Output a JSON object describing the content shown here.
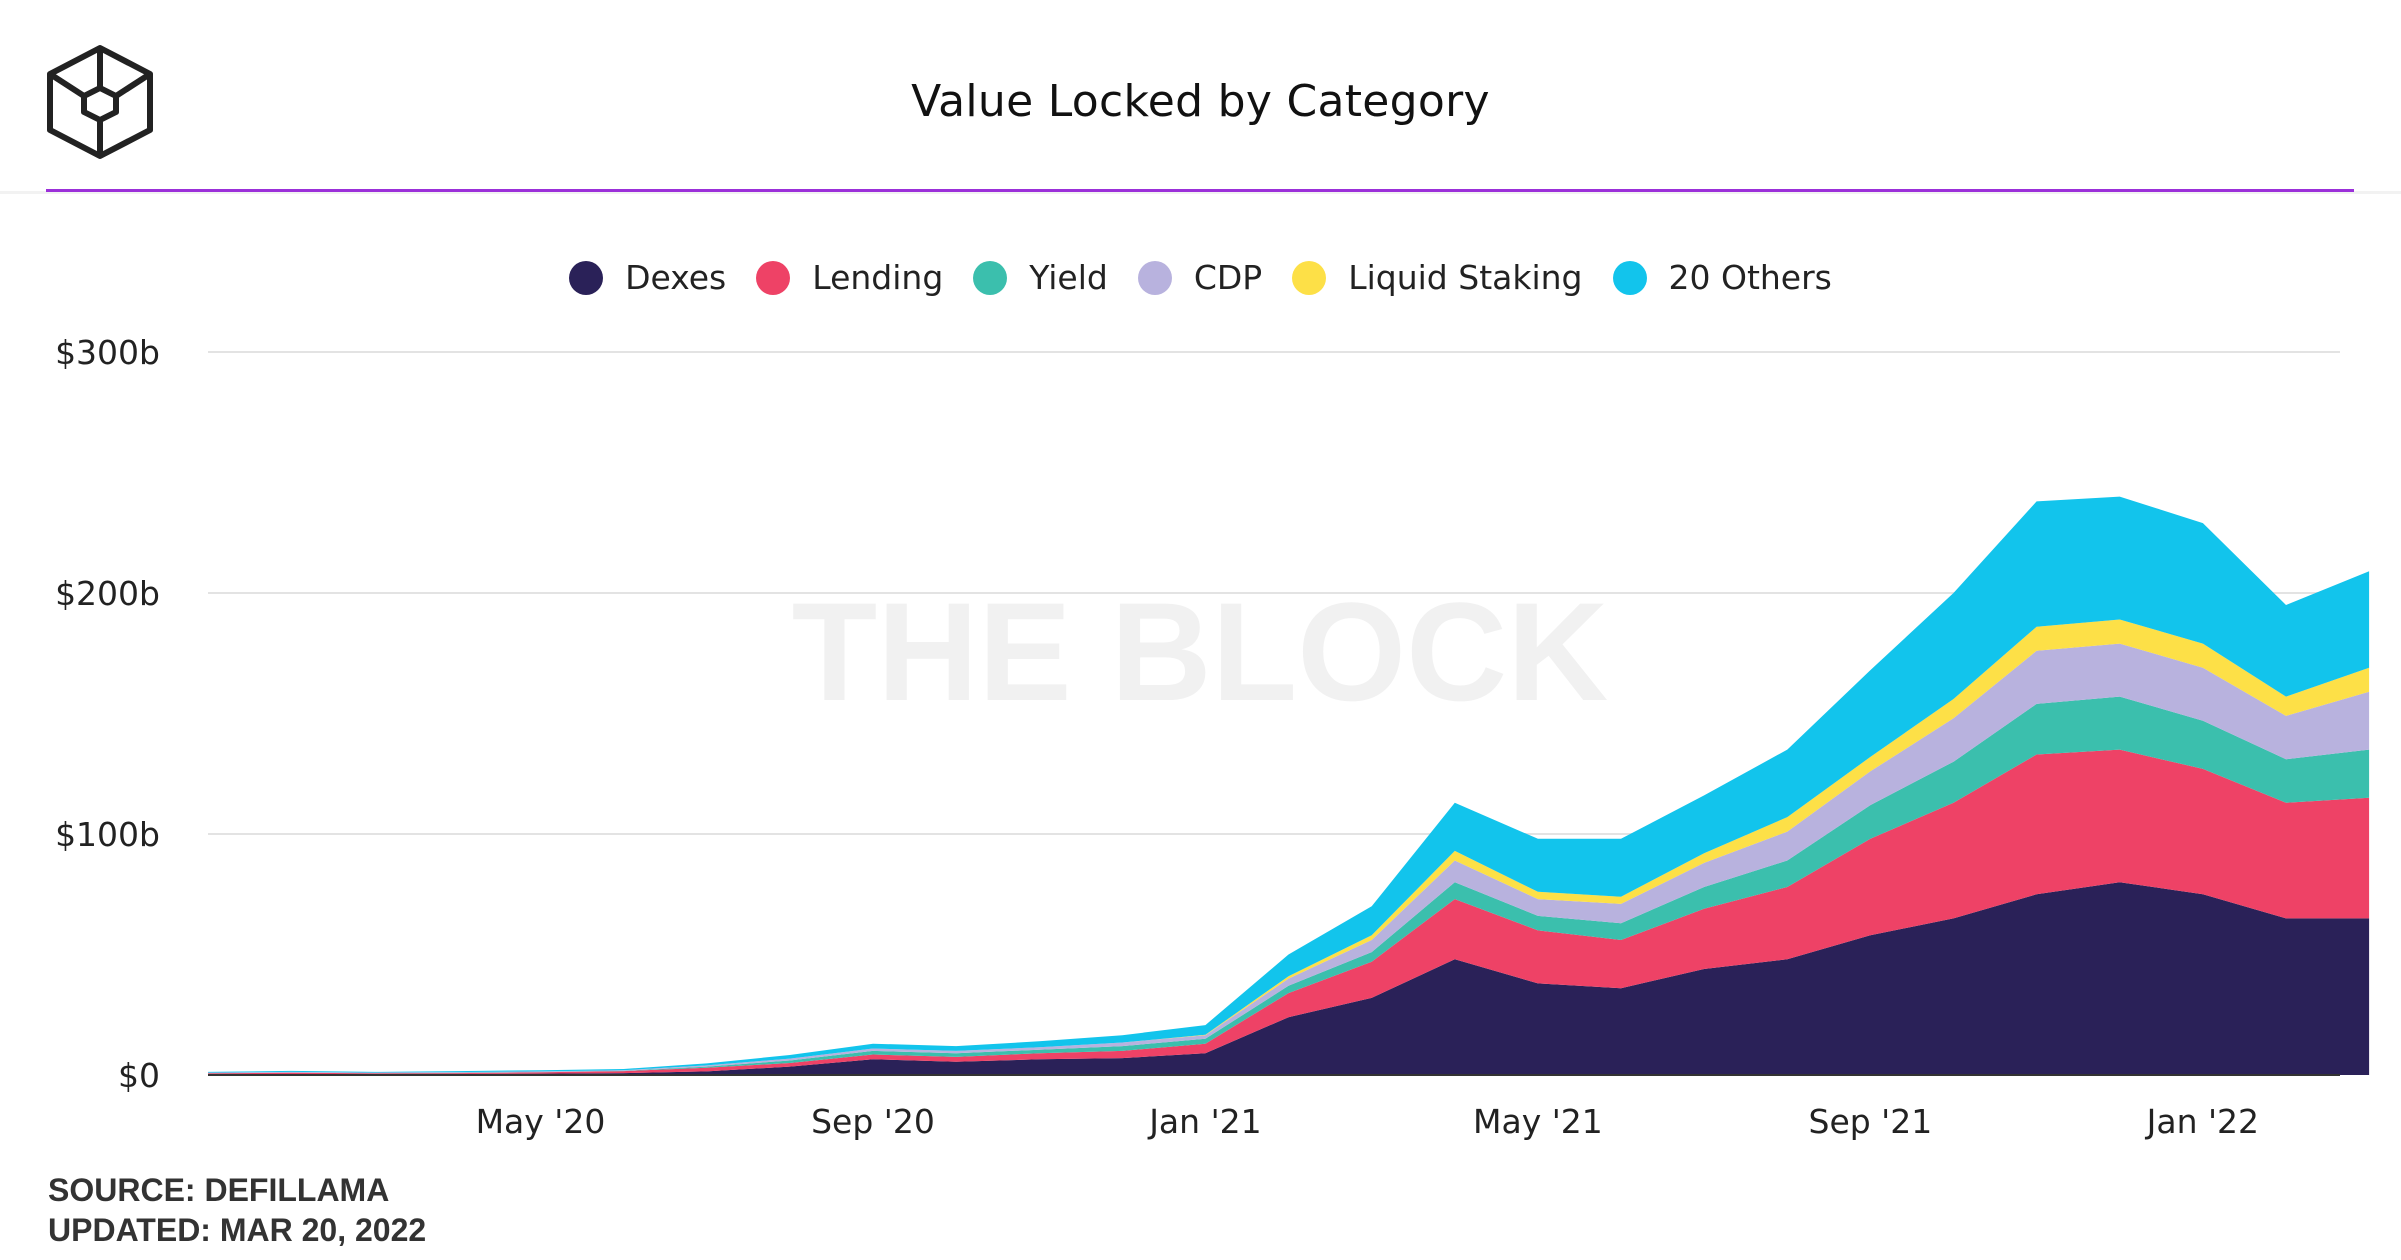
{
  "header": {
    "title": "Value Locked by Category",
    "logo_icon": "the-block-cube-logo-icon"
  },
  "watermark": "THE BLOCK",
  "footer": {
    "source": "SOURCE: DEFILLAMA",
    "updated": "UPDATED: MAR 20, 2022"
  },
  "chart_data": {
    "type": "area",
    "stacked": true,
    "title": "Value Locked by Category",
    "xlabel": "",
    "ylabel": "",
    "ylim": [
      0,
      300
    ],
    "y_unit": "billion USD",
    "y_ticks": [
      {
        "value": 0,
        "label": "$0"
      },
      {
        "value": 100,
        "label": "$100b"
      },
      {
        "value": 200,
        "label": "$200b"
      },
      {
        "value": 300,
        "label": "$300b"
      }
    ],
    "x_ticks": [
      "May '20",
      "Sep '20",
      "Jan '21",
      "May '21",
      "Sep '21",
      "Jan '22"
    ],
    "x": [
      "Jan '20",
      "Feb '20",
      "Mar '20",
      "Apr '20",
      "May '20",
      "Jun '20",
      "Jul '20",
      "Aug '20",
      "Sep '20",
      "Oct '20",
      "Nov '20",
      "Dec '20",
      "Jan '21",
      "Feb '21",
      "Mar '21",
      "Apr '21",
      "May '21",
      "Jun '21",
      "Jul '21",
      "Aug '21",
      "Sep '21",
      "Oct '21",
      "Nov '21",
      "Dec '21",
      "Jan '22",
      "Feb '22",
      "Mar '22"
    ],
    "grid": true,
    "legend_position": "top",
    "series": [
      {
        "name": "Dexes",
        "color": "#2a2158",
        "values": [
          0.3,
          0.4,
          0.3,
          0.4,
          0.6,
          0.8,
          1.5,
          3.5,
          6.5,
          5.5,
          6.5,
          7,
          9,
          24,
          32,
          48,
          38,
          36,
          44,
          48,
          58,
          65,
          75,
          80,
          75,
          65,
          65
        ]
      },
      {
        "name": "Lending",
        "color": "#ee4266",
        "values": [
          0.4,
          0.5,
          0.4,
          0.4,
          0.5,
          0.8,
          1.5,
          1.5,
          2,
          2,
          2.5,
          3,
          4,
          10,
          15,
          25,
          22,
          20,
          25,
          30,
          40,
          48,
          58,
          55,
          52,
          48,
          50
        ]
      },
      {
        "name": "Yield",
        "color": "#3bbfad",
        "values": [
          0.1,
          0.1,
          0.1,
          0.1,
          0.1,
          0.1,
          0.5,
          1,
          1.5,
          1.5,
          1.5,
          2,
          2,
          3,
          4,
          7,
          6,
          7,
          9,
          11,
          14,
          17,
          21,
          22,
          20,
          18,
          20
        ]
      },
      {
        "name": "CDP",
        "color": "#b8b2de",
        "values": [
          0.2,
          0.3,
          0.2,
          0.3,
          0.3,
          0.3,
          0.5,
          0.8,
          1,
          1,
          1,
          1.5,
          1.5,
          3,
          5,
          9,
          7,
          8,
          10,
          12,
          14,
          18,
          22,
          22,
          22,
          18,
          24
        ]
      },
      {
        "name": "Liquid Staking",
        "color": "#fde047",
        "values": [
          0,
          0,
          0,
          0,
          0,
          0,
          0,
          0,
          0,
          0,
          0,
          0,
          0.2,
          1,
          2,
          4,
          3,
          3,
          4,
          6,
          6,
          8,
          10,
          10,
          10,
          8,
          10
        ]
      },
      {
        "name": "20 Others",
        "color": "#12c4ec",
        "values": [
          0.3,
          0.4,
          0.3,
          0.4,
          0.5,
          0.5,
          0.8,
          1.5,
          2,
          2,
          2.5,
          3,
          4,
          9,
          12,
          20,
          22,
          24,
          24,
          28,
          36,
          44,
          52,
          51,
          50,
          38,
          40
        ]
      }
    ]
  }
}
